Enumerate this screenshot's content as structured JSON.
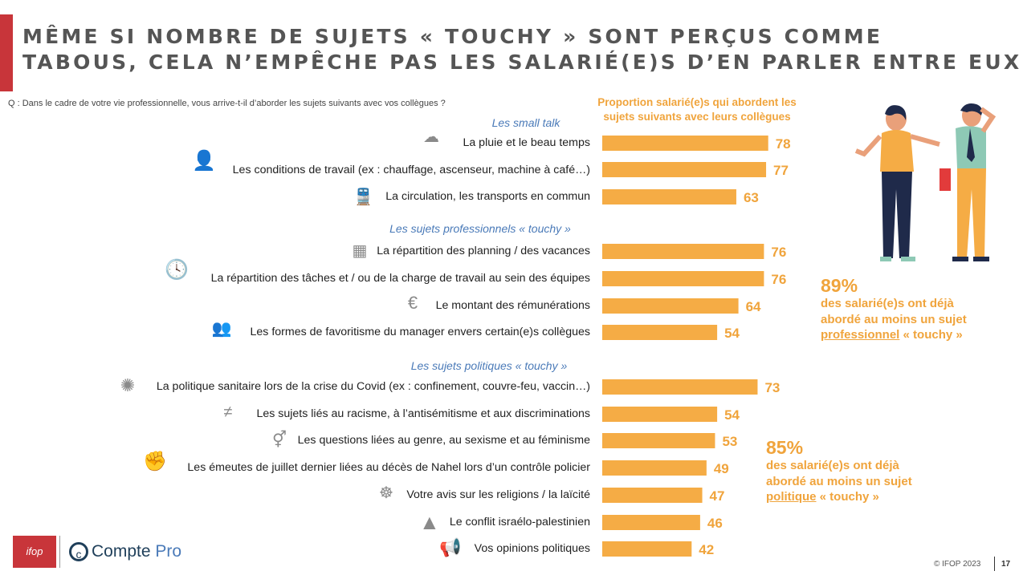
{
  "title_lines": [
    "MÊME SI NOMBRE DE SUJETS « TOUCHY » SONT PERÇUS COMME",
    "TABOUS, CELA N’EMPÊCHE PAS LES SALARIÉ(E)S D’EN PARLER ENTRE EUX…"
  ],
  "question": "Q : Dans le cadre de votre vie professionnelle, vous arrive-t-il d’aborder les sujets suivants avec vos collègues ?",
  "column_header": [
    "Proportion salarié(e)s qui abordent les",
    "sujets suivants avec leurs collègues"
  ],
  "colors": {
    "bar": "#f5ac45",
    "value": "#f0a43c",
    "accent": "#c8353a",
    "section": "#4a7ab8"
  },
  "chart_data": {
    "type": "bar",
    "orientation": "horizontal",
    "xlim": [
      0,
      100
    ],
    "groups": [
      {
        "name": "Les small talk",
        "items": [
          {
            "label": "La pluie et le beau temps",
            "value": 78,
            "icon": "cloud-rain-icon"
          },
          {
            "label": "Les conditions de travail (ex : chauffage, ascenseur, machine à café…)",
            "value": 77,
            "icon": "office-worker-icon"
          },
          {
            "label": "La circulation, les transports en commun",
            "value": 63,
            "icon": "train-icon"
          }
        ]
      },
      {
        "name": "Les sujets professionnels « touchy »",
        "items": [
          {
            "label": "La répartition des planning / des vacances",
            "value": 76,
            "icon": "calendar-icon"
          },
          {
            "label": "La répartition des tâches et / ou de la charge de travail au sein des équipes",
            "value": 76,
            "icon": "desk-clock-icon"
          },
          {
            "label": "Le montant des rémunérations",
            "value": 64,
            "icon": "money-bag-icon"
          },
          {
            "label": "Les formes de favoritisme du manager envers certain(e)s collègues",
            "value": 54,
            "icon": "people-group-icon"
          }
        ]
      },
      {
        "name": "Les sujets politiques « touchy »",
        "items": [
          {
            "label": "La politique sanitaire lors de la crise du Covid (ex : confinement, couvre-feu, vaccin…)",
            "value": 73,
            "icon": "virus-icon"
          },
          {
            "label": "Les sujets liés au racisme, à l’antisémitisme et aux discriminations",
            "value": 54,
            "icon": "not-equal-people-icon"
          },
          {
            "label": "Les questions liées au genre, au sexisme et au féminisme",
            "value": 53,
            "icon": "gender-symbols-icon"
          },
          {
            "label": "Les émeutes de juillet dernier liées au décès de Nahel lors d’un contrôle policier",
            "value": 49,
            "icon": "protest-icon"
          },
          {
            "label": "Votre avis sur les religions / la laïcité",
            "value": 47,
            "icon": "religion-symbols-icon"
          },
          {
            "label": "Le conflit israélo-palestinien",
            "value": 46,
            "icon": "map-israel-icon"
          },
          {
            "label": "Vos opinions politiques",
            "value": 42,
            "icon": "megaphone-icon"
          }
        ]
      }
    ]
  },
  "stats": [
    {
      "pct": "89%",
      "line1": "des salarié(e)s ont déjà",
      "line2": "abordé au moins un sujet",
      "line3_underlined": "professionnel",
      "line3_rest": " « touchy »"
    },
    {
      "pct": "85%",
      "line1": "des salarié(e)s ont déjà",
      "line2": "abordé au moins un sujet",
      "line3_underlined": "politique",
      "line3_rest": " « touchy »"
    }
  ],
  "footer": {
    "ifop_logo": "ifop",
    "compte": "Compte",
    "pro": "Pro",
    "copyright": "© IFOP 2023",
    "page": "17"
  }
}
